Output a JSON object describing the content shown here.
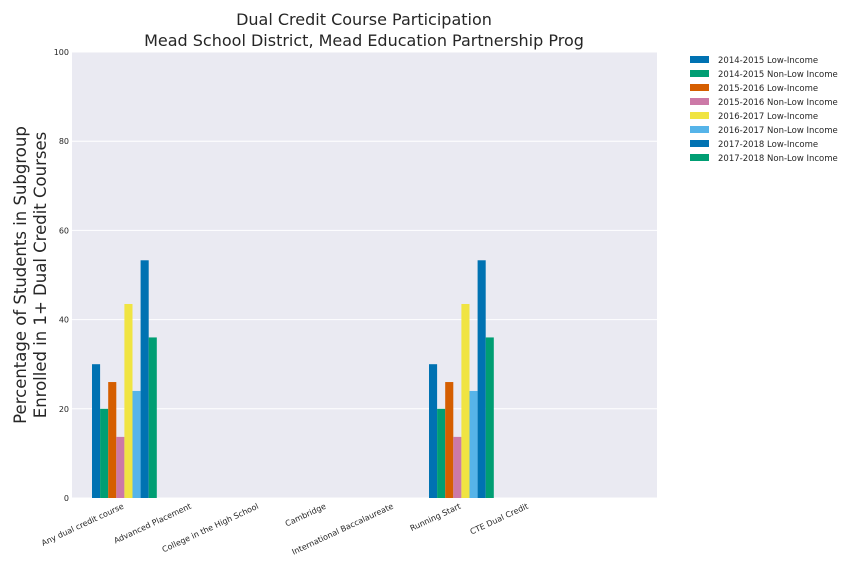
{
  "chart_data": {
    "type": "bar",
    "title": [
      "Dual Credit Course Participation",
      "Mead School District, Mead Education Partnership Prog"
    ],
    "xlabel": "",
    "ylabel": [
      "Percentage of Students in Subgroup",
      "Enrolled in 1+ Dual Credit Courses"
    ],
    "ylim": [
      0,
      100
    ],
    "yticks": [
      0,
      20,
      40,
      60,
      80,
      100
    ],
    "grid": true,
    "legend_position": "outside-top-right",
    "categories": [
      "Any dual credit course",
      "Advanced Placement",
      "College in the High School",
      "Cambridge",
      "International Baccalaureate",
      "Running Start",
      "CTE Dual Credit"
    ],
    "series": [
      {
        "name": "2014-2015 Low-Income",
        "color": "#0072b2",
        "values": [
          30,
          0,
          0,
          0,
          0,
          30,
          0
        ]
      },
      {
        "name": "2014-2015 Non-Low Income",
        "color": "#009e73",
        "values": [
          20,
          0,
          0,
          0,
          0,
          20,
          0
        ]
      },
      {
        "name": "2015-2016 Low-Income",
        "color": "#d55e00",
        "values": [
          26,
          0,
          0,
          0,
          0,
          26,
          0
        ]
      },
      {
        "name": "2015-2016 Non-Low Income",
        "color": "#cc79a7",
        "values": [
          13.7,
          0,
          0,
          0,
          0,
          13.7,
          0
        ]
      },
      {
        "name": "2016-2017 Low-Income",
        "color": "#f0e442",
        "values": [
          43.5,
          0,
          0,
          0,
          0,
          43.5,
          0
        ]
      },
      {
        "name": "2016-2017 Non-Low Income",
        "color": "#56b4e9",
        "values": [
          24,
          0,
          0,
          0,
          0,
          24,
          0
        ]
      },
      {
        "name": "2017-2018 Low-Income",
        "color": "#0072b2",
        "values": [
          53.3,
          0,
          0,
          0,
          0,
          53.3,
          0
        ]
      },
      {
        "name": "2017-2018 Non-Low Income",
        "color": "#009e73",
        "values": [
          36,
          0,
          0,
          0,
          0,
          36,
          0
        ]
      }
    ]
  }
}
